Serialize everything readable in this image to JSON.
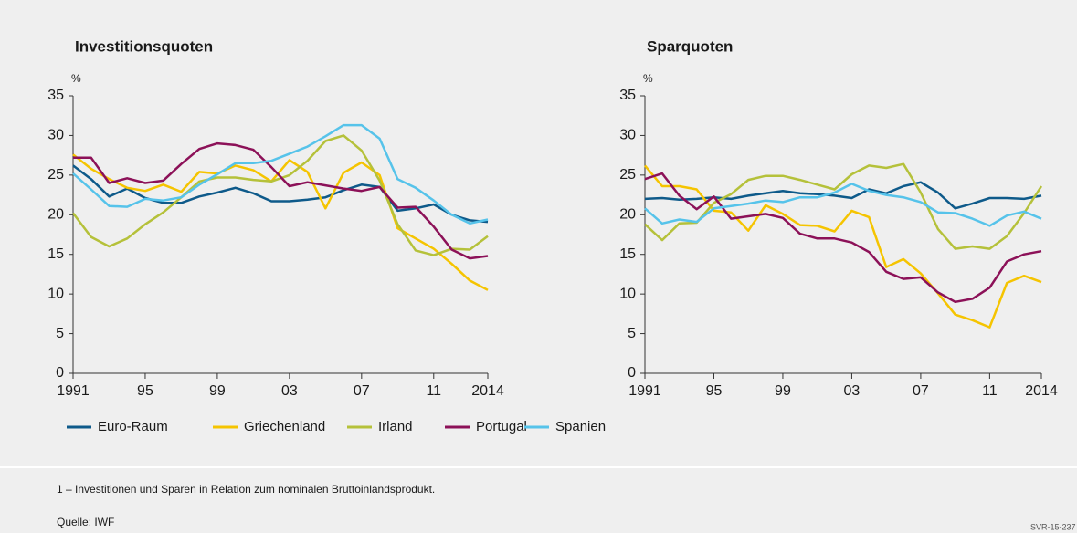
{
  "chart_data": [
    {
      "type": "line",
      "title": "Investitionsquoten",
      "y_label": "%",
      "x": [
        1991,
        1992,
        1993,
        1994,
        1995,
        1996,
        1997,
        1998,
        1999,
        2000,
        2001,
        2002,
        2003,
        2004,
        2005,
        2006,
        2007,
        2008,
        2009,
        2010,
        2011,
        2012,
        2013,
        2014
      ],
      "xlim": [
        1991,
        2014
      ],
      "xticks": [
        1991,
        {
          "value": 1995,
          "label": "95"
        },
        {
          "value": 1999,
          "label": "99"
        },
        {
          "value": 2003,
          "label": "03"
        },
        {
          "value": 2007,
          "label": "07"
        },
        {
          "value": 2011,
          "label": "11"
        },
        2014
      ],
      "ylim": [
        0,
        35
      ],
      "yticks": [
        0,
        5,
        10,
        15,
        20,
        25,
        30,
        35
      ],
      "series": [
        {
          "name": "Euro-Raum",
          "color": "#0e5a8a",
          "values": [
            26.2,
            24.5,
            22.3,
            23.3,
            22.1,
            21.5,
            21.5,
            22.3,
            22.8,
            23.4,
            22.7,
            21.7,
            21.7,
            21.9,
            22.2,
            23.1,
            23.8,
            23.5,
            20.5,
            20.8,
            21.3,
            20.0,
            19.3,
            19.1
          ]
        },
        {
          "name": "Griechenland",
          "color": "#f5c400",
          "values": [
            27.6,
            25.8,
            24.5,
            23.4,
            23.0,
            23.8,
            22.9,
            25.4,
            25.2,
            26.2,
            25.6,
            24.2,
            26.9,
            25.4,
            20.8,
            25.3,
            26.6,
            25.0,
            18.3,
            17.0,
            15.7,
            13.8,
            11.7,
            10.5
          ]
        },
        {
          "name": "Irland",
          "color": "#b5c13a",
          "values": [
            20.2,
            17.2,
            16.0,
            17.0,
            18.8,
            20.3,
            22.2,
            24.2,
            24.7,
            24.7,
            24.4,
            24.2,
            25.0,
            26.8,
            29.3,
            30.0,
            28.1,
            24.3,
            18.8,
            15.5,
            14.9,
            15.7,
            15.6,
            17.3
          ]
        },
        {
          "name": "Portugal",
          "color": "#8c1158",
          "values": [
            27.2,
            27.2,
            24.0,
            24.6,
            24.0,
            24.3,
            26.4,
            28.3,
            29.0,
            28.8,
            28.2,
            26.0,
            23.6,
            24.1,
            23.7,
            23.3,
            23.0,
            23.5,
            20.9,
            21.0,
            18.5,
            15.6,
            14.5,
            14.8
          ]
        },
        {
          "name": "Spanien",
          "color": "#56c3ea",
          "values": [
            25.2,
            23.2,
            21.1,
            21.0,
            22.0,
            21.8,
            22.2,
            23.8,
            25.1,
            26.5,
            26.5,
            26.8,
            27.7,
            28.6,
            29.9,
            31.3,
            31.3,
            29.6,
            24.5,
            23.4,
            21.8,
            20.0,
            18.9,
            19.4
          ]
        }
      ]
    },
    {
      "type": "line",
      "title": "Sparquoten",
      "y_label": "%",
      "x": [
        1991,
        1992,
        1993,
        1994,
        1995,
        1996,
        1997,
        1998,
        1999,
        2000,
        2001,
        2002,
        2003,
        2004,
        2005,
        2006,
        2007,
        2008,
        2009,
        2010,
        2011,
        2012,
        2013,
        2014
      ],
      "xlim": [
        1991,
        2014
      ],
      "xticks": [
        1991,
        {
          "value": 1995,
          "label": "95"
        },
        {
          "value": 1999,
          "label": "99"
        },
        {
          "value": 2003,
          "label": "03"
        },
        {
          "value": 2007,
          "label": "07"
        },
        {
          "value": 2011,
          "label": "11"
        },
        2014
      ],
      "ylim": [
        0,
        35
      ],
      "yticks": [
        0,
        5,
        10,
        15,
        20,
        25,
        30,
        35
      ],
      "series": [
        {
          "color": "#0e5a8a",
          "values": [
            22.0,
            22.1,
            21.9,
            22.0,
            22.2,
            22.0,
            22.4,
            22.7,
            23.0,
            22.7,
            22.6,
            22.4,
            22.1,
            23.2,
            22.7,
            23.6,
            24.1,
            22.8,
            20.8,
            21.4,
            22.1,
            22.1,
            22.0,
            22.4
          ]
        },
        {
          "color": "#f5c400",
          "values": [
            26.2,
            23.6,
            23.6,
            23.2,
            20.5,
            20.3,
            18.0,
            21.2,
            20.1,
            18.7,
            18.6,
            17.9,
            20.5,
            19.7,
            13.4,
            14.4,
            12.6,
            10.1,
            7.4,
            6.7,
            5.8,
            11.4,
            12.3,
            11.5
          ]
        },
        {
          "color": "#b5c13a",
          "values": [
            18.8,
            16.8,
            18.9,
            19.0,
            21.5,
            22.6,
            24.4,
            24.9,
            24.9,
            24.4,
            23.8,
            23.2,
            25.1,
            26.2,
            25.9,
            26.4,
            22.8,
            18.2,
            15.7,
            16.0,
            15.7,
            17.3,
            20.2,
            23.6
          ]
        },
        {
          "color": "#8c1158",
          "values": [
            24.5,
            25.2,
            22.4,
            20.7,
            22.3,
            19.5,
            19.8,
            20.1,
            19.6,
            17.6,
            17.0,
            17.0,
            16.5,
            15.3,
            12.8,
            11.9,
            12.1,
            10.2,
            9.0,
            9.4,
            10.8,
            14.1,
            15.0,
            15.4
          ]
        },
        {
          "color": "#56c3ea",
          "values": [
            20.8,
            18.9,
            19.4,
            19.1,
            20.8,
            21.1,
            21.4,
            21.8,
            21.6,
            22.2,
            22.2,
            22.8,
            23.9,
            23.0,
            22.5,
            22.2,
            21.6,
            20.3,
            20.2,
            19.5,
            18.6,
            19.9,
            20.4,
            19.5
          ]
        }
      ]
    }
  ],
  "footnote": "1 – Investitionen und Sparen in Relation zum nominalen Bruttoinlandsprodukt.",
  "source": "Quelle: IWF",
  "code": "SVR-15-237"
}
